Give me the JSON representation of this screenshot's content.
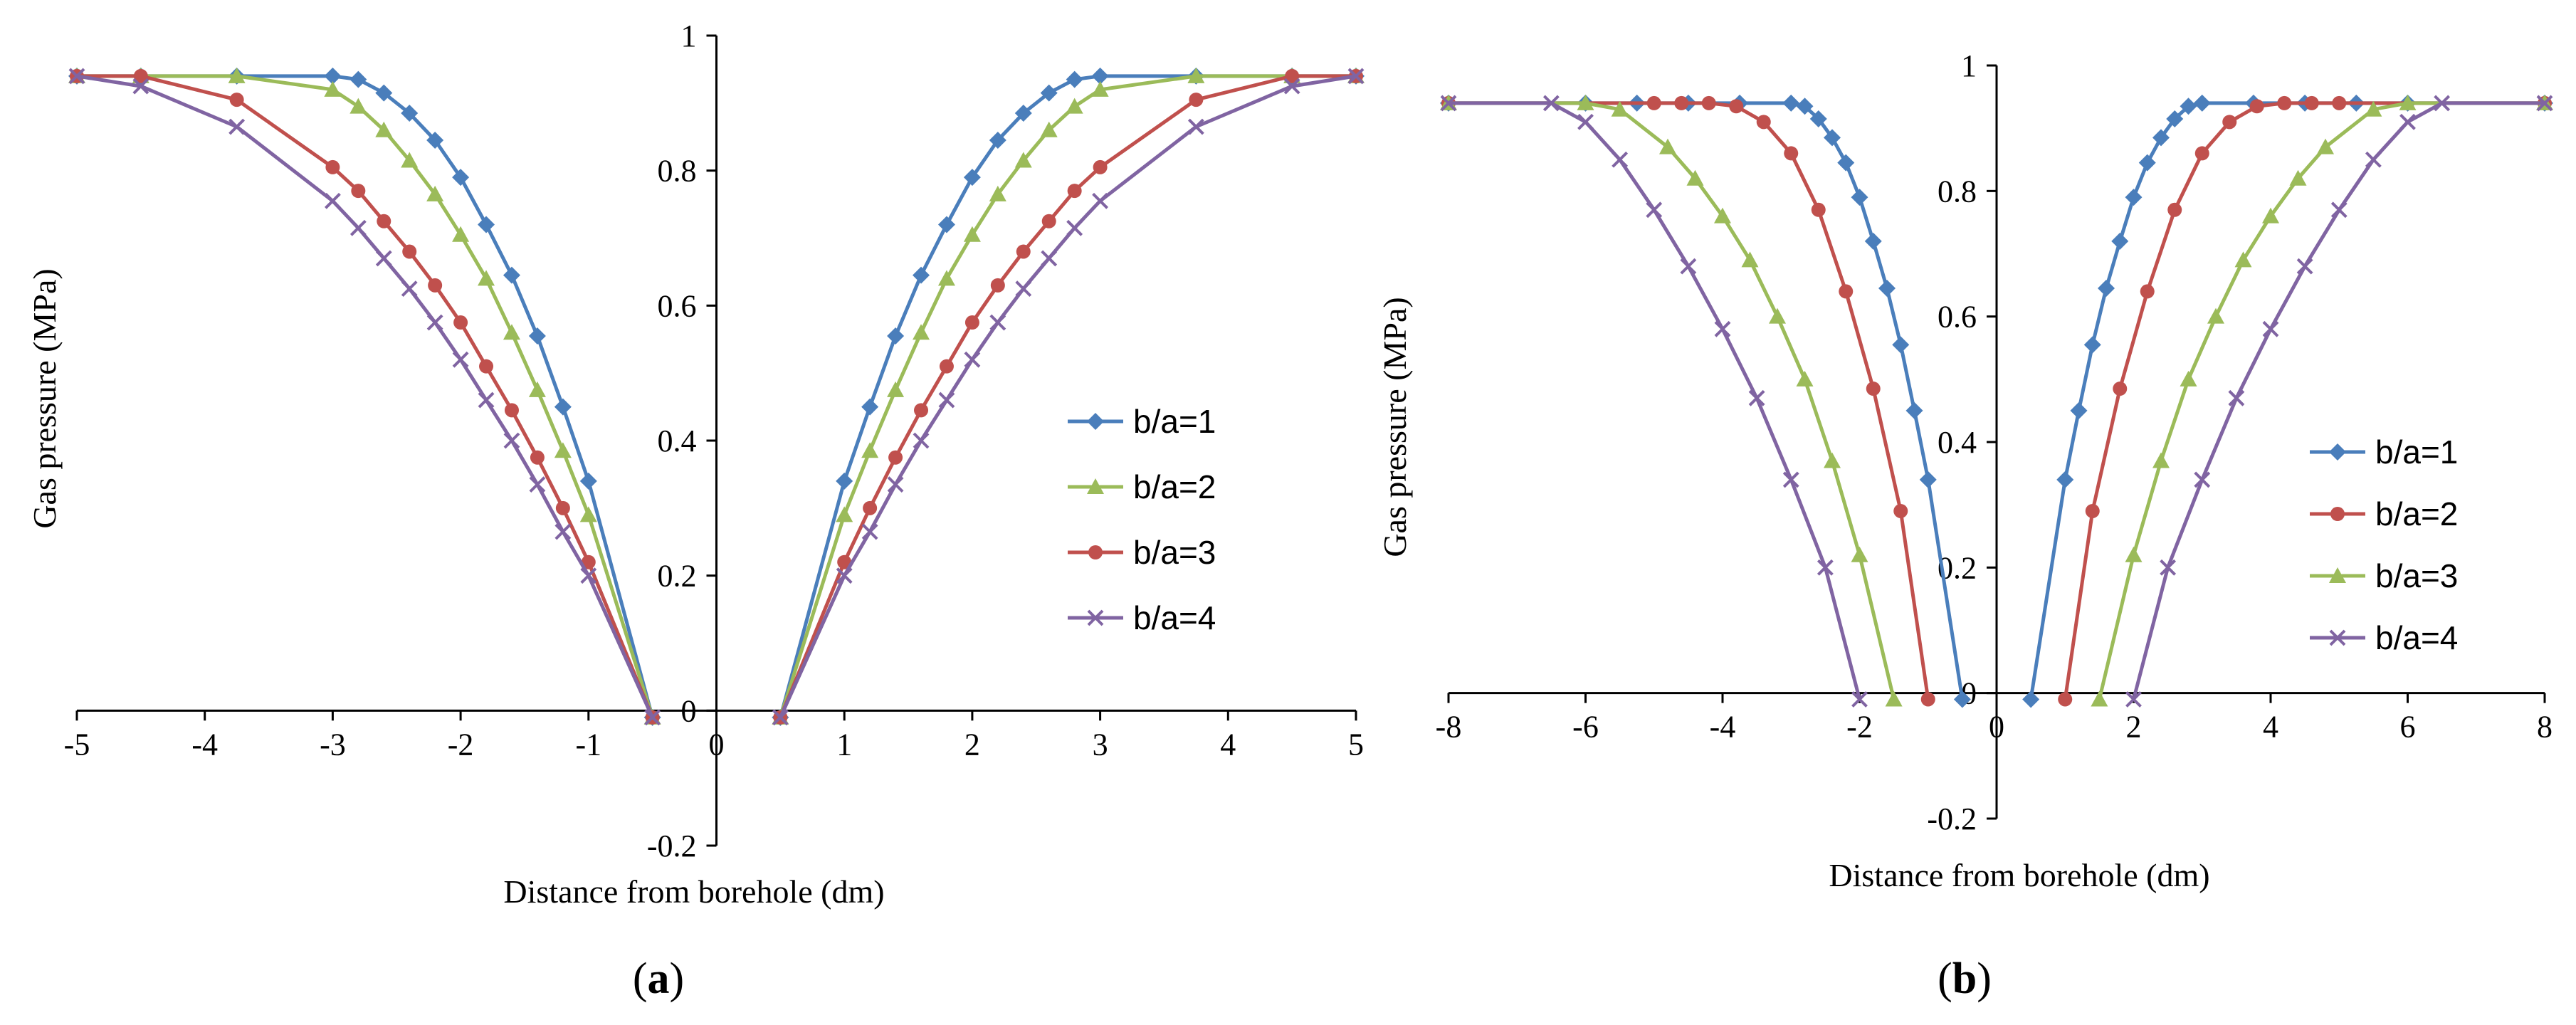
{
  "chart_data": [
    {
      "type": "line",
      "panel_label": "(a)",
      "panel_letter": "a",
      "xlabel": "Distance from borehole (dm)",
      "ylabel": "Gas pressure  (MPa)",
      "xlim": [
        -5,
        5
      ],
      "ylim": [
        -0.2,
        1
      ],
      "xticks": [
        -5,
        -4,
        -3,
        -2,
        -1,
        0,
        1,
        2,
        3,
        4,
        5
      ],
      "yticks": [
        -0.2,
        0,
        0.2,
        0.4,
        0.6,
        0.8,
        1
      ],
      "xtick_labels": [
        "-5",
        "-4",
        "-3",
        "-2",
        "-1",
        "0",
        "1",
        "2",
        "3",
        "4",
        "5"
      ],
      "ytick_labels": [
        "-0.2",
        "0",
        "0.2",
        "0.4",
        "0.6",
        "0.8",
        "1"
      ],
      "legend_position": "right-center",
      "series": [
        {
          "name": "b/a=1",
          "color": "#4a7ebb",
          "marker": "diamond",
          "x": [
            0.5,
            1.0,
            1.2,
            1.4,
            1.6,
            1.8,
            2.0,
            2.2,
            2.4,
            2.6,
            2.8,
            3.0,
            3.75,
            4.5,
            5.0
          ],
          "y": [
            -0.01,
            0.34,
            0.45,
            0.555,
            0.645,
            0.72,
            0.79,
            0.845,
            0.885,
            0.915,
            0.935,
            0.94,
            0.94,
            0.94,
            0.94
          ]
        },
        {
          "name": "b/a=2",
          "color": "#9bbb59",
          "marker": "triangle",
          "x": [
            0.5,
            1.0,
            1.2,
            1.4,
            1.6,
            1.8,
            2.0,
            2.2,
            2.4,
            2.6,
            2.8,
            3.0,
            3.75,
            4.5,
            5.0
          ],
          "y": [
            -0.01,
            0.29,
            0.385,
            0.475,
            0.56,
            0.64,
            0.705,
            0.765,
            0.815,
            0.86,
            0.895,
            0.92,
            0.94,
            0.94,
            0.94
          ]
        },
        {
          "name": "b/a=3",
          "color": "#c0504d",
          "marker": "circle",
          "x": [
            0.5,
            1.0,
            1.2,
            1.4,
            1.6,
            1.8,
            2.0,
            2.2,
            2.4,
            2.6,
            2.8,
            3.0,
            3.75,
            4.5,
            5.0
          ],
          "y": [
            -0.01,
            0.22,
            0.3,
            0.375,
            0.445,
            0.51,
            0.575,
            0.63,
            0.68,
            0.725,
            0.77,
            0.805,
            0.905,
            0.94,
            0.94
          ]
        },
        {
          "name": "b/a=4",
          "color": "#8064a2",
          "marker": "x",
          "x": [
            0.5,
            1.0,
            1.2,
            1.4,
            1.6,
            1.8,
            2.0,
            2.2,
            2.4,
            2.6,
            2.8,
            3.0,
            3.75,
            4.5,
            5.0
          ],
          "y": [
            -0.01,
            0.2,
            0.265,
            0.335,
            0.4,
            0.46,
            0.52,
            0.575,
            0.625,
            0.67,
            0.715,
            0.755,
            0.865,
            0.925,
            0.94
          ]
        }
      ],
      "mirror_about_zero": true
    },
    {
      "type": "line",
      "panel_label": "(b)",
      "panel_letter": "b",
      "xlabel": "Distance from borehole (dm)",
      "ylabel": "Gas pressure  (MPa)",
      "xlim": [
        -8,
        8
      ],
      "ylim": [
        -0.2,
        1
      ],
      "xticks": [
        -8,
        -6,
        -4,
        -2,
        0,
        2,
        4,
        6,
        8
      ],
      "yticks": [
        -0.2,
        0,
        0.2,
        0.4,
        0.6,
        0.8,
        1
      ],
      "xtick_labels": [
        "-8",
        "-6",
        "-4",
        "-2",
        "0",
        "2",
        "4",
        "6",
        "8"
      ],
      "ytick_labels": [
        "-0.2",
        "0",
        "0.2",
        "0.4",
        "0.6",
        "0.8",
        "1"
      ],
      "legend_position": "right-center",
      "series": [
        {
          "name": "b/a=1",
          "color": "#4a7ebb",
          "marker": "diamond",
          "x": [
            0.5,
            1.0,
            1.2,
            1.4,
            1.6,
            1.8,
            2.0,
            2.2,
            2.4,
            2.6,
            2.8,
            3.0,
            3.75,
            4.5,
            5.25,
            6.0,
            8.0
          ],
          "y": [
            -0.01,
            0.34,
            0.45,
            0.555,
            0.645,
            0.72,
            0.79,
            0.845,
            0.885,
            0.915,
            0.935,
            0.94,
            0.94,
            0.94,
            0.94,
            0.94,
            0.94
          ]
        },
        {
          "name": "b/a=2",
          "color": "#c0504d",
          "marker": "circle",
          "x": [
            1.0,
            1.4,
            1.8,
            2.2,
            2.6,
            3.0,
            3.4,
            3.8,
            4.2,
            4.6,
            5.0,
            8.0
          ],
          "y": [
            -0.01,
            0.29,
            0.485,
            0.64,
            0.77,
            0.86,
            0.91,
            0.935,
            0.94,
            0.94,
            0.94,
            0.94
          ]
        },
        {
          "name": "b/a=3",
          "color": "#9bbb59",
          "marker": "triangle",
          "x": [
            1.5,
            2.0,
            2.4,
            2.8,
            3.2,
            3.6,
            4.0,
            4.4,
            4.8,
            5.5,
            6.0,
            8.0
          ],
          "y": [
            -0.01,
            0.22,
            0.37,
            0.5,
            0.6,
            0.69,
            0.76,
            0.82,
            0.87,
            0.93,
            0.94,
            0.94
          ]
        },
        {
          "name": "b/a=4",
          "color": "#8064a2",
          "marker": "x",
          "x": [
            2.0,
            2.5,
            3.0,
            3.5,
            4.0,
            4.5,
            5.0,
            5.5,
            6.0,
            6.5,
            8.0
          ],
          "y": [
            -0.01,
            0.2,
            0.34,
            0.47,
            0.58,
            0.68,
            0.77,
            0.85,
            0.91,
            0.94,
            0.94
          ]
        }
      ],
      "mirror_about_zero": true
    }
  ]
}
